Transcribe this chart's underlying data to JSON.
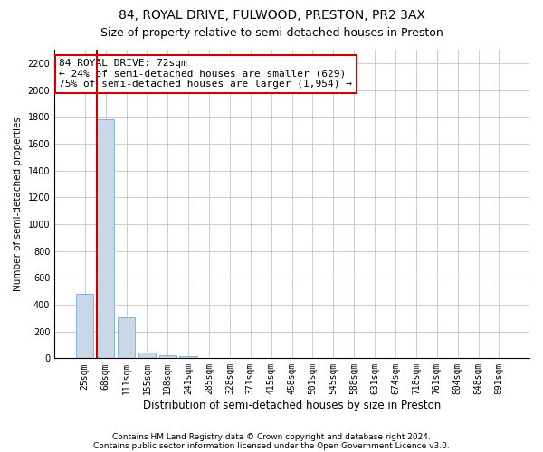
{
  "title1": "84, ROYAL DRIVE, FULWOOD, PRESTON, PR2 3AX",
  "title2": "Size of property relative to semi-detached houses in Preston",
  "xlabel": "Distribution of semi-detached houses by size in Preston",
  "ylabel": "Number of semi-detached properties",
  "footnote1": "Contains HM Land Registry data © Crown copyright and database right 2024.",
  "footnote2": "Contains public sector information licensed under the Open Government Licence v3.0.",
  "annotation_title": "84 ROYAL DRIVE: 72sqm",
  "annotation_line2": "← 24% of semi-detached houses are smaller (629)",
  "annotation_line3": "75% of semi-detached houses are larger (1,954) →",
  "bar_color": "#c8d8e8",
  "bar_edge_color": "#7aaac8",
  "highlight_line_color": "#cc0000",
  "annotation_box_color": "#ffffff",
  "annotation_border_color": "#cc0000",
  "background_color": "#ffffff",
  "grid_color": "#cccccc",
  "categories": [
    "25sqm",
    "68sqm",
    "111sqm",
    "155sqm",
    "198sqm",
    "241sqm",
    "285sqm",
    "328sqm",
    "371sqm",
    "415sqm",
    "458sqm",
    "501sqm",
    "545sqm",
    "588sqm",
    "631sqm",
    "674sqm",
    "718sqm",
    "761sqm",
    "804sqm",
    "848sqm",
    "891sqm"
  ],
  "values": [
    480,
    1780,
    305,
    45,
    22,
    13,
    0,
    0,
    0,
    0,
    0,
    0,
    0,
    0,
    0,
    0,
    0,
    0,
    0,
    0,
    0
  ],
  "ylim": [
    0,
    2300
  ],
  "yticks": [
    0,
    200,
    400,
    600,
    800,
    1000,
    1200,
    1400,
    1600,
    1800,
    2000,
    2200
  ],
  "highlight_bar_index": 1,
  "title1_fontsize": 10,
  "title2_fontsize": 9,
  "xlabel_fontsize": 8.5,
  "ylabel_fontsize": 7.5,
  "tick_fontsize": 7,
  "annotation_fontsize": 8,
  "footnote_fontsize": 6.5
}
